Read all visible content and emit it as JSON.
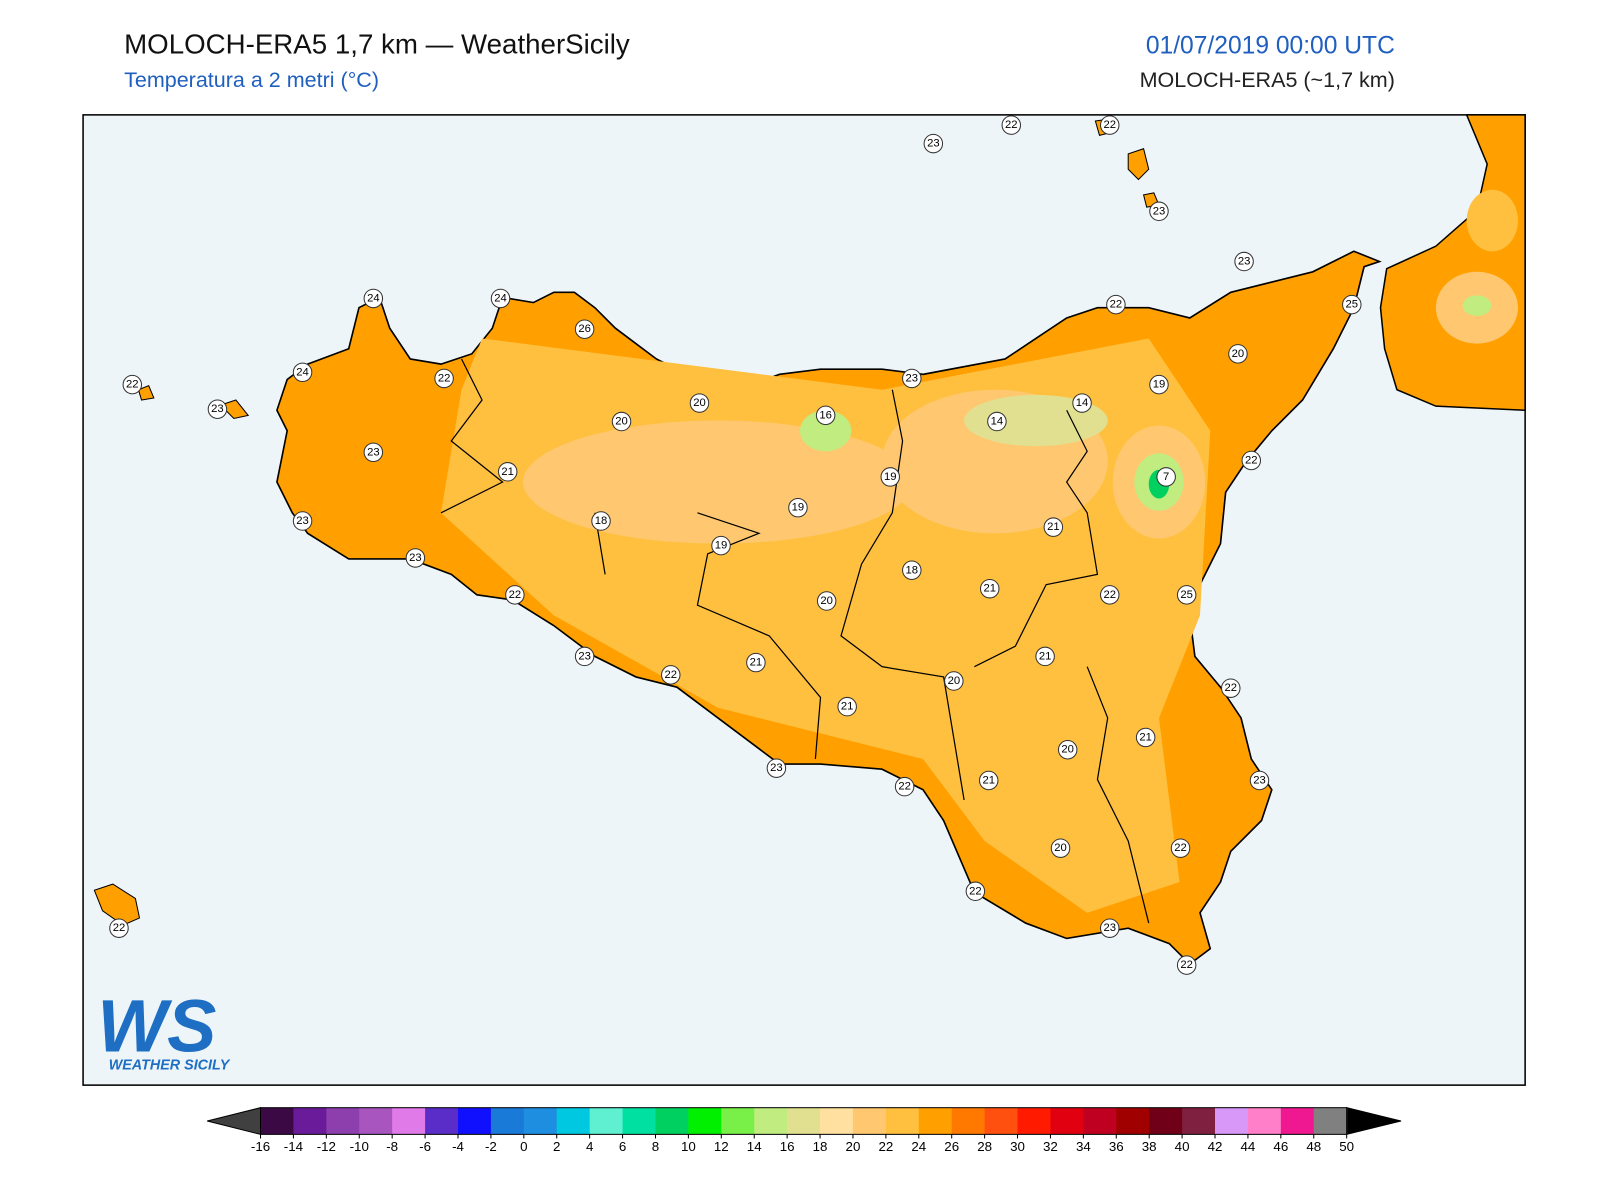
{
  "header": {
    "title": "MOLOCH-ERA5 1,7 km — WeatherSicily",
    "subtitle": "Temperatura a 2 metri (°C)",
    "date": "01/07/2019 00:00 UTC",
    "model": "MOLOCH-ERA5 (~1,7 km)"
  },
  "logo": {
    "mark": "WS",
    "name": "WEATHER SICILY"
  },
  "stations": [
    23,
    22,
    22,
    23,
    23,
    25,
    22,
    20,
    19,
    14,
    14,
    23,
    16,
    19,
    7,
    22,
    21,
    18,
    21,
    22,
    25,
    21,
    20,
    22,
    21,
    20,
    21,
    23,
    22,
    20,
    22,
    23,
    22,
    22,
    21,
    20,
    23,
    21,
    22,
    19,
    19,
    20,
    20,
    18,
    23,
    22,
    23,
    23,
    23,
    21,
    22,
    24,
    24,
    24,
    26,
    22,
    23,
    22
  ],
  "colorbar": {
    "ticks": [
      -16,
      -14,
      -12,
      -10,
      -8,
      -6,
      -4,
      -2,
      0,
      2,
      4,
      6,
      8,
      10,
      12,
      14,
      16,
      18,
      20,
      22,
      24,
      26,
      28,
      30,
      32,
      34,
      36,
      38,
      40,
      42,
      44,
      46,
      48,
      50
    ],
    "colors": [
      "#3b0a45",
      "#6a1b9a",
      "#8e3fae",
      "#a855c0",
      "#e07ae8",
      "#5b2dc8",
      "#1010ff",
      "#1a7ad8",
      "#1e8ee0",
      "#00c8e0",
      "#5ef0d0",
      "#00e0a0",
      "#00d060",
      "#00f000",
      "#78f048",
      "#c0ec80",
      "#e0e090",
      "#ffe0a0",
      "#ffc870",
      "#ffc040",
      "#ffa000",
      "#ff7800",
      "#ff5010",
      "#ff1a00",
      "#e00010",
      "#c00020",
      "#a00000",
      "#700018",
      "#802040",
      "#d898f8",
      "#ff80c8",
      "#f01890",
      "#808080"
    ],
    "under_color": "#404040",
    "over_color": "#000000"
  }
}
